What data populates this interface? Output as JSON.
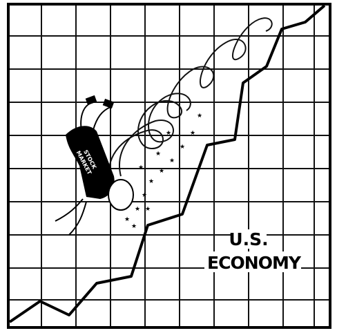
{
  "caption": {
    "line1": "U.S.",
    "line2": "ECONOMY"
  },
  "figure_label": {
    "line1": "STOCK",
    "line2": "MARKET"
  }
}
